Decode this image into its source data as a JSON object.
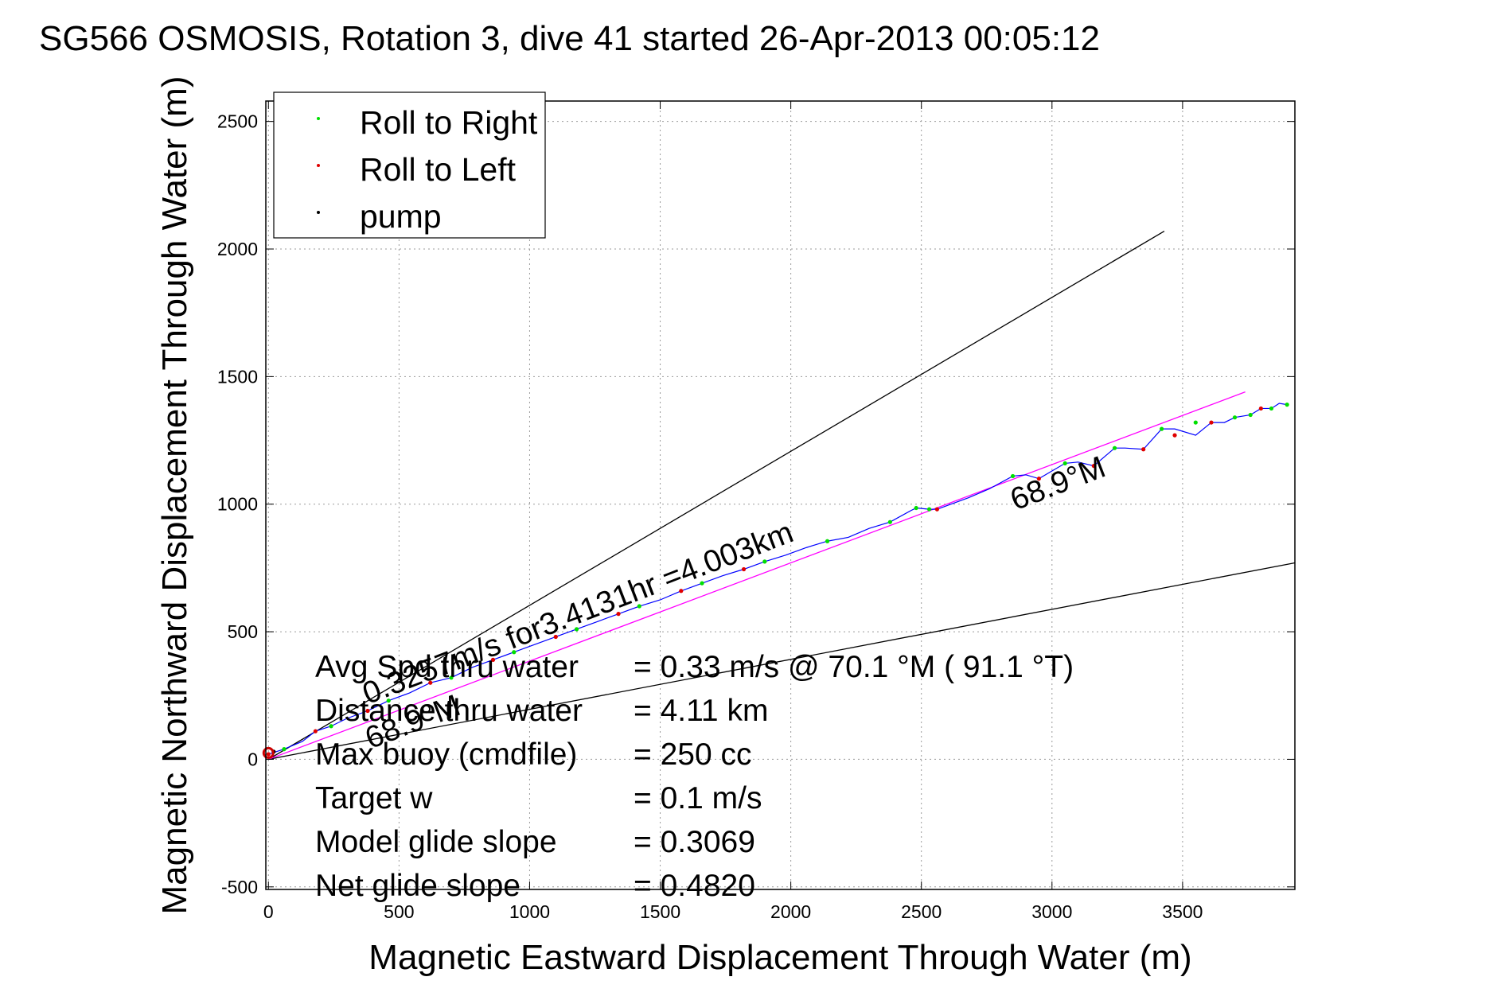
{
  "chart_data": {
    "type": "line",
    "title": "SG566 OSMOSIS, Rotation 3, dive 41 started 26-Apr-2013 00:05:12",
    "xlabel": "Magnetic Eastward Displacement Through Water (m)",
    "ylabel": "Magnetic Northward Displacement Through Water (m)",
    "xlim": [
      -10,
      3930
    ],
    "ylim": [
      -510,
      2580
    ],
    "xticks": [
      0,
      500,
      1000,
      1500,
      2000,
      2500,
      3000,
      3500
    ],
    "xtick_labels": [
      "0",
      "500",
      "1000",
      "1500",
      "2000",
      "2500",
      "3000",
      "3500"
    ],
    "yticks": [
      -500,
      0,
      500,
      1000,
      1500,
      2000,
      2500
    ],
    "ytick_labels": [
      "-500",
      "0",
      "500",
      "1000",
      "1500",
      "2000",
      "2500"
    ],
    "grid": true,
    "legend_position": "top-left",
    "legend": [
      {
        "label": "Roll to Right",
        "color": "#00e000"
      },
      {
        "label": "Roll to Left",
        "color": "#e00000"
      },
      {
        "label": "pump",
        "color": "#000000"
      }
    ],
    "series": [
      {
        "type": "track",
        "color": "#0000ff",
        "x": [
          0,
          60,
          130,
          180,
          240,
          300,
          380,
          460,
          540,
          620,
          700,
          780,
          860,
          940,
          1020,
          1100,
          1180,
          1260,
          1340,
          1420,
          1500,
          1580,
          1660,
          1740,
          1820,
          1900,
          1980,
          2060,
          2140,
          2220,
          2300,
          2380,
          2460,
          2480,
          2530,
          2560,
          2600,
          2680,
          2760,
          2850,
          2900,
          2950,
          3000,
          3050,
          3100,
          3160,
          3240,
          3280,
          3350,
          3420,
          3470,
          3550,
          3610,
          3660,
          3700,
          3760,
          3800,
          3840,
          3870,
          3900
        ],
        "y": [
          20,
          40,
          70,
          110,
          130,
          160,
          190,
          230,
          260,
          300,
          320,
          360,
          390,
          420,
          450,
          480,
          510,
          540,
          570,
          600,
          625,
          660,
          690,
          720,
          745,
          775,
          800,
          830,
          855,
          870,
          905,
          930,
          975,
          985,
          980,
          980,
          995,
          1025,
          1060,
          1110,
          1115,
          1100,
          1130,
          1160,
          1165,
          1150,
          1220,
          1220,
          1215,
          1295,
          1295,
          1270,
          1320,
          1320,
          1340,
          1350,
          1375,
          1375,
          1395,
          1390
        ]
      },
      {
        "type": "points",
        "name": "Roll to Right",
        "color": "#00e000",
        "x": [
          60,
          240,
          460,
          700,
          940,
          1180,
          1420,
          1660,
          1900,
          2140,
          2380,
          2480,
          2530,
          2850,
          3050,
          3240,
          3420,
          3550,
          3700,
          3760,
          3840,
          3900
        ],
        "y": [
          40,
          130,
          230,
          320,
          420,
          510,
          600,
          690,
          775,
          855,
          930,
          985,
          980,
          1110,
          1160,
          1220,
          1295,
          1320,
          1340,
          1350,
          1375,
          1390
        ]
      },
      {
        "type": "points",
        "name": "Roll to Left",
        "color": "#e00000",
        "x": [
          0,
          180,
          380,
          620,
          860,
          1100,
          1340,
          1580,
          1820,
          2560,
          2950,
          3160,
          3350,
          3470,
          3610,
          3800
        ],
        "y": [
          20,
          110,
          190,
          300,
          390,
          480,
          570,
          660,
          745,
          980,
          1100,
          1150,
          1215,
          1270,
          1320,
          1375
        ]
      },
      {
        "type": "points",
        "name": "pump",
        "color": "#000000",
        "x": [
          20
        ],
        "y": [
          30
        ]
      },
      {
        "type": "line",
        "color": "#000000",
        "x": [
          0,
          3430
        ],
        "y": [
          0,
          2070
        ]
      },
      {
        "type": "line",
        "color": "#000000",
        "x": [
          0,
          3930
        ],
        "y": [
          0,
          770
        ]
      },
      {
        "type": "line",
        "color": "#ff00ff",
        "x": [
          0,
          3740
        ],
        "y": [
          0,
          1440
        ]
      },
      {
        "type": "origin-marker",
        "color": "#cc0000",
        "x": [
          0
        ],
        "y": [
          25
        ]
      }
    ],
    "annotations": [
      {
        "text": "68.9°M",
        "x": 2860,
        "y": 975,
        "rotate": -21
      },
      {
        "text": "0.3257m/s for3.4131hr =4.003km",
        "x": 380,
        "y": 215,
        "rotate": -21
      },
      {
        "text": "68.9°M",
        "x": 390,
        "y": 40,
        "rotate": -21
      }
    ],
    "stats": [
      {
        "label": "Avg Spd thru water",
        "value": "=  0.33 m/s @  70.1 °M ( 91.1 °T)"
      },
      {
        "label": "Distance thru water",
        "value": "=  4.11 km"
      },
      {
        "label": "Max buoy (cmdfile)",
        "value": "= 250 cc"
      },
      {
        "label": "Target w",
        "value": "= 0.1 m/s"
      },
      {
        "label": "Model glide slope",
        "value": "= 0.3069"
      },
      {
        "label": "Net glide slope",
        "value": "= 0.4820"
      }
    ]
  }
}
